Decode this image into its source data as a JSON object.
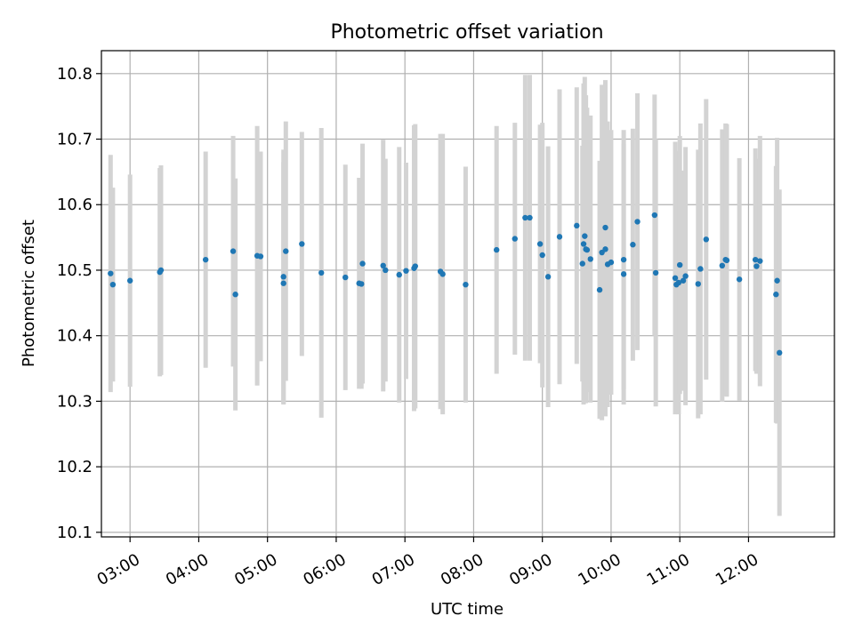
{
  "chart_data": {
    "type": "scatter",
    "title": "Photometric offset variation",
    "xlabel": "UTC time",
    "ylabel": "Photometric offset",
    "x_unit": "UTC time (hours)",
    "xlim": [
      "02:35",
      "13:15"
    ],
    "ylim": [
      10.093,
      10.835
    ],
    "x_ticks": [
      "03:00",
      "04:00",
      "05:00",
      "06:00",
      "07:00",
      "08:00",
      "09:00",
      "10:00",
      "11:00",
      "12:00"
    ],
    "y_ticks": [
      "10.1",
      "10.2",
      "10.3",
      "10.4",
      "10.5",
      "10.6",
      "10.7",
      "10.8"
    ],
    "grid": true,
    "colors": {
      "point": "#1f77b4",
      "errorbar": "#d3d3d3",
      "grid": "#b0b0b0"
    },
    "series": [
      {
        "x": [
          "02:43",
          "02:45",
          "03:00",
          "03:26",
          "03:27",
          "04:06",
          "04:30",
          "04:32",
          "04:51",
          "04:54",
          "05:14",
          "05:14",
          "05:16",
          "05:30",
          "05:47",
          "06:08",
          "06:20",
          "06:22",
          "06:23",
          "06:41",
          "06:43",
          "06:55",
          "07:01",
          "07:08",
          "07:09",
          "07:31",
          "07:33",
          "07:53",
          "08:20",
          "08:36",
          "08:45",
          "08:49",
          "08:58",
          "09:00",
          "09:05",
          "09:15",
          "09:30",
          "09:35",
          "09:36",
          "09:37",
          "09:38",
          "09:39",
          "09:42",
          "09:50",
          "09:52",
          "09:55",
          "09:55",
          "09:57",
          "10:00",
          "10:11",
          "10:11",
          "10:19",
          "10:23",
          "10:38",
          "10:39",
          "10:56",
          "10:57",
          "10:59",
          "11:00",
          "11:03",
          "11:05",
          "11:16",
          "11:18",
          "11:23",
          "11:37",
          "11:40",
          "11:41",
          "11:52",
          "12:06",
          "12:07",
          "12:10",
          "12:24",
          "12:25",
          "12:27"
        ],
        "y": [
          10.495,
          10.478,
          10.484,
          10.497,
          10.5,
          10.516,
          10.529,
          10.463,
          10.522,
          10.521,
          10.48,
          10.49,
          10.529,
          10.54,
          10.496,
          10.489,
          10.48,
          10.479,
          10.51,
          10.507,
          10.5,
          10.493,
          10.499,
          10.503,
          10.506,
          10.498,
          10.494,
          10.478,
          10.531,
          10.548,
          10.58,
          10.58,
          10.54,
          10.523,
          10.49,
          10.551,
          10.568,
          10.51,
          10.54,
          10.552,
          10.532,
          10.531,
          10.517,
          10.47,
          10.527,
          10.532,
          10.565,
          10.509,
          10.512,
          10.494,
          10.516,
          10.539,
          10.574,
          10.584,
          10.496,
          10.488,
          10.478,
          10.481,
          10.508,
          10.484,
          10.491,
          10.479,
          10.502,
          10.547,
          10.507,
          10.516,
          10.515,
          10.486,
          10.516,
          10.506,
          10.514,
          10.463,
          10.484,
          10.374
        ],
        "err": [
          0.181,
          0.148,
          0.162,
          0.159,
          0.16,
          0.165,
          0.176,
          0.177,
          0.198,
          0.16,
          0.185,
          0.194,
          0.198,
          0.171,
          0.221,
          0.172,
          0.161,
          0.16,
          0.183,
          0.192,
          0.17,
          0.195,
          0.165,
          0.218,
          0.217,
          0.21,
          0.214,
          0.18,
          0.189,
          0.177,
          0.218,
          0.218,
          0.182,
          0.202,
          0.199,
          0.225,
          0.211,
          0.18,
          0.245,
          0.243,
          0.235,
          0.217,
          0.219,
          0.197,
          0.256,
          0.255,
          0.225,
          0.218,
          0.202,
          0.199,
          0.198,
          0.177,
          0.196,
          0.184,
          0.204,
          0.208,
          0.197,
          0.201,
          0.197,
          0.168,
          0.197,
          0.205,
          0.222,
          0.214,
          0.208,
          0.208,
          0.208,
          0.185,
          0.17,
          0.164,
          0.191,
          0.196,
          0.218,
          0.249
        ]
      }
    ]
  }
}
